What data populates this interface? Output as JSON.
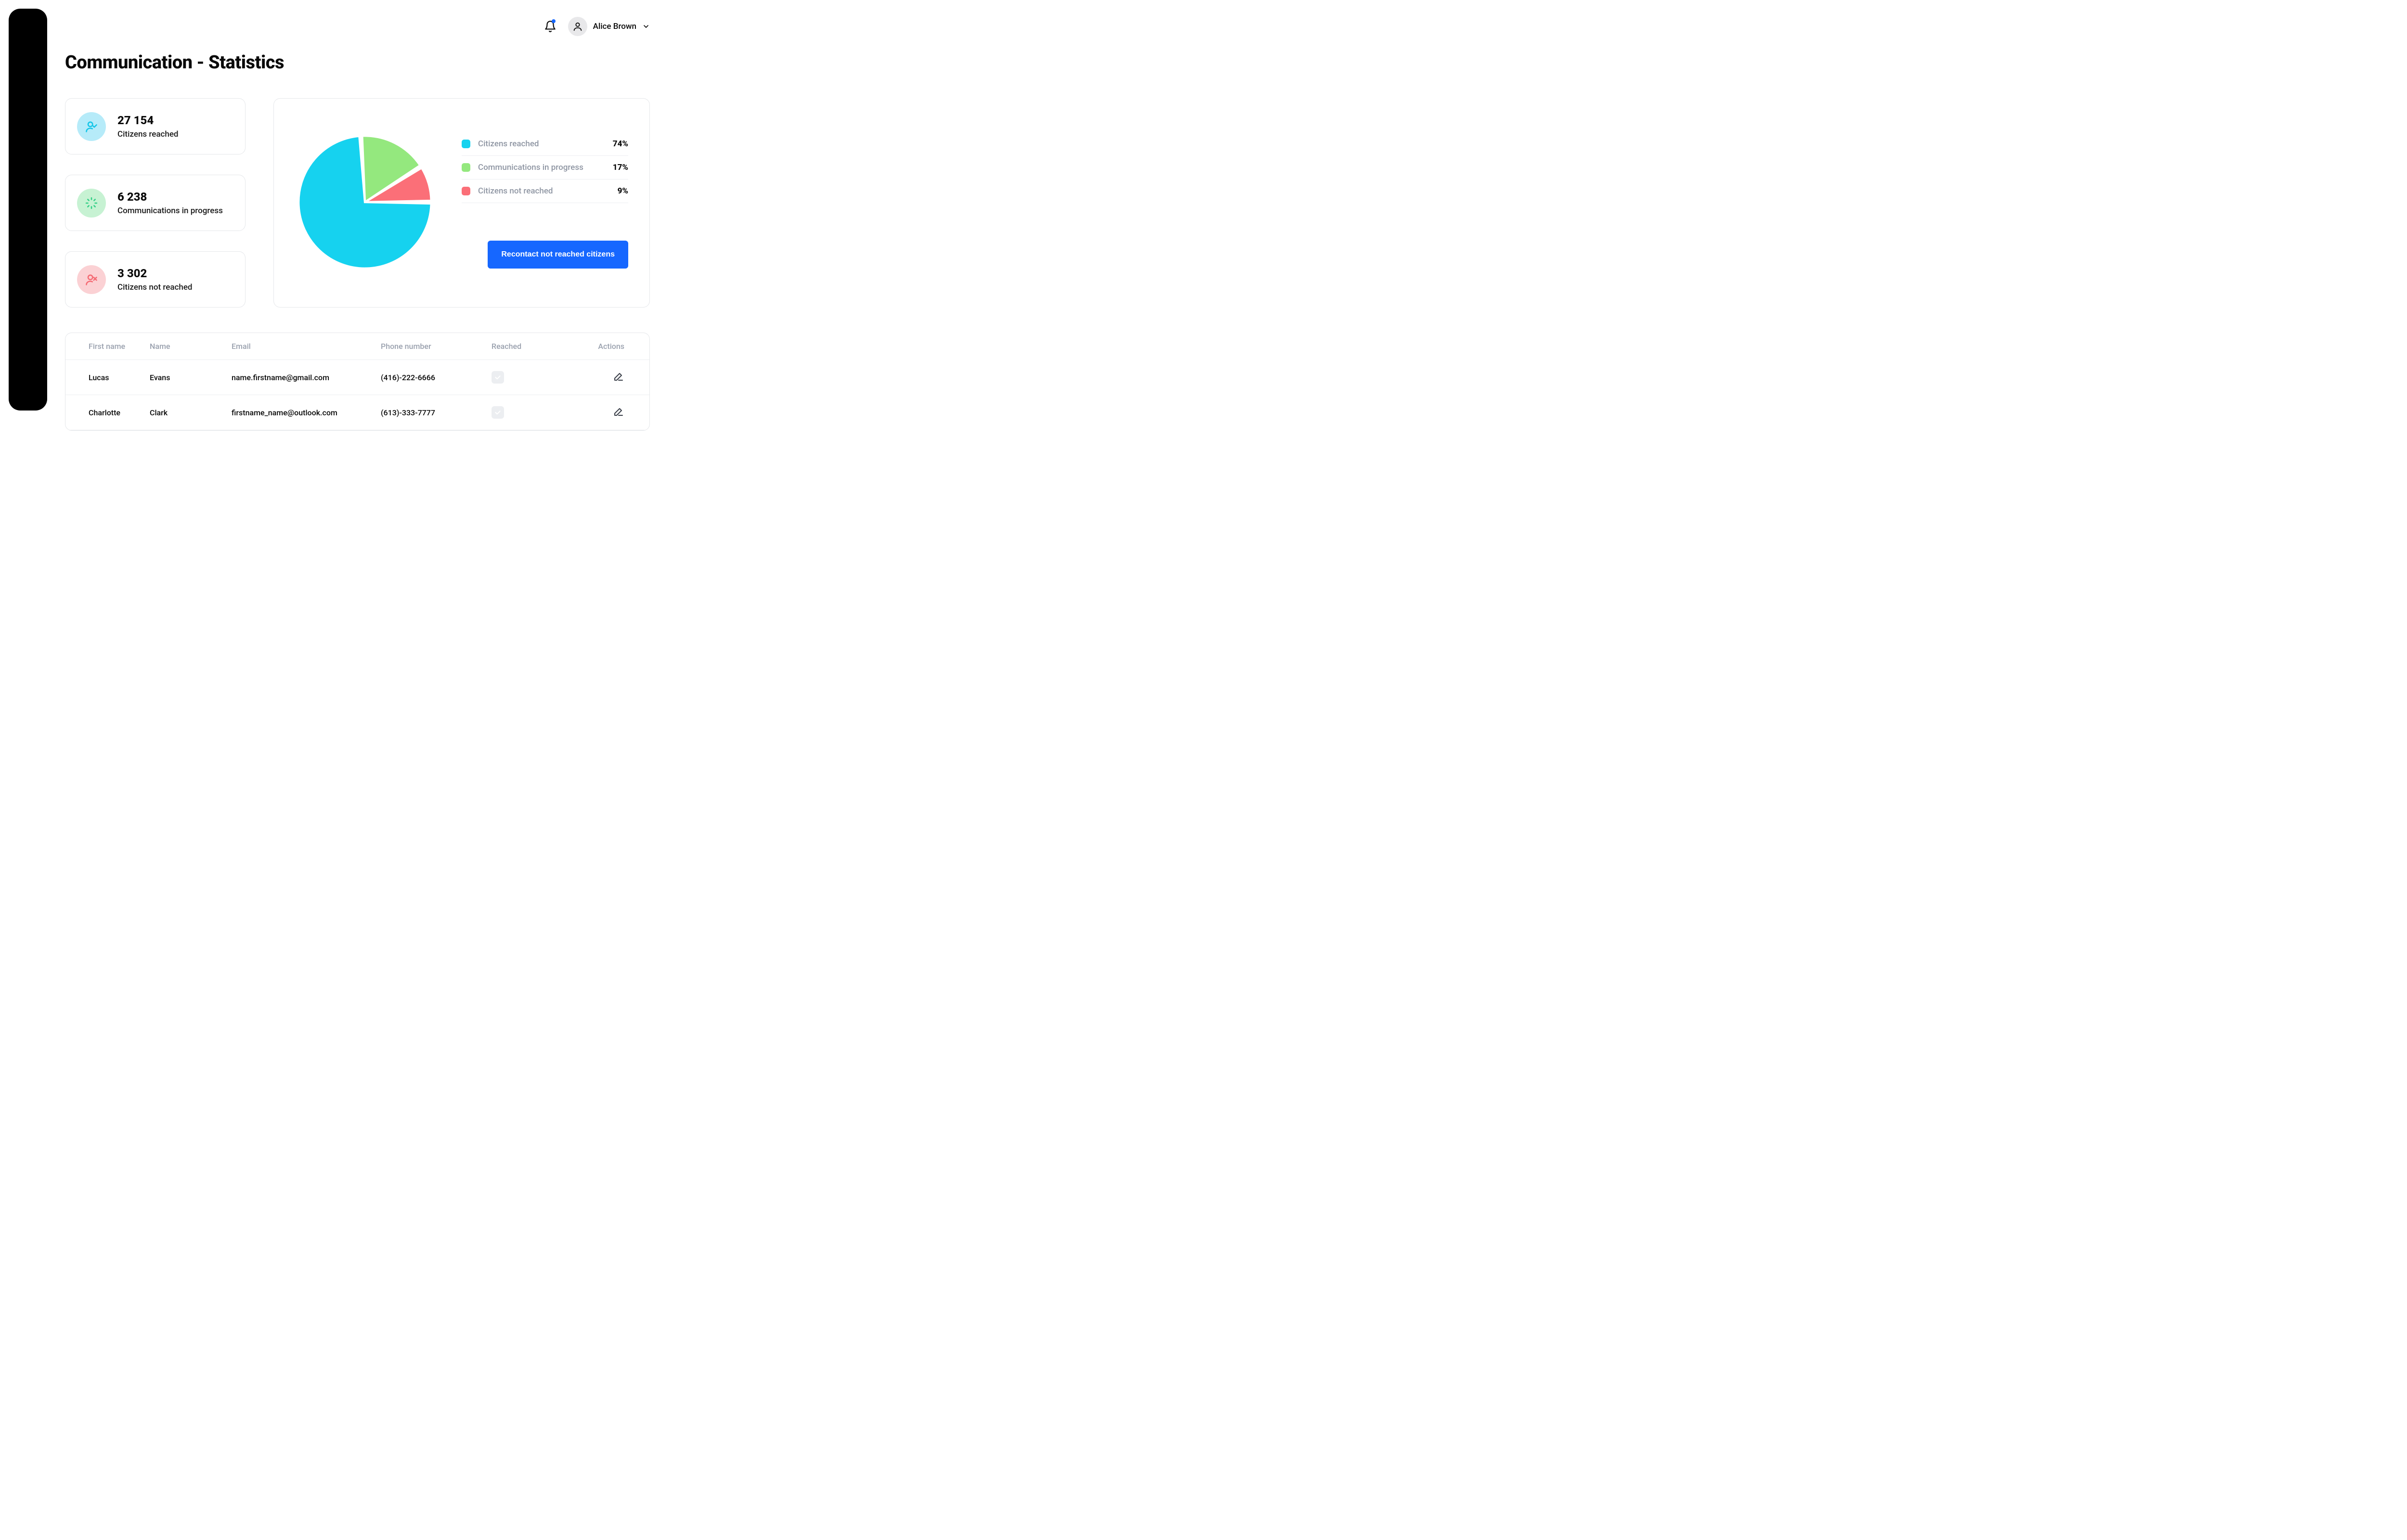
{
  "header": {
    "user_name": "Alice Brown"
  },
  "page": {
    "title": "Communication - Statistics"
  },
  "stats": {
    "cards": [
      {
        "value": "27 154",
        "label": "Citizens reached",
        "icon_bg": "#b6ebf9",
        "icon_fg": "#15c6e8",
        "icon": "user-check"
      },
      {
        "value": "6 238",
        "label": "Communications in progress",
        "icon_bg": "#c7f2d3",
        "icon_fg": "#34cf87",
        "icon": "spinner"
      },
      {
        "value": "3 302",
        "label": "Citizens not reached",
        "icon_bg": "#fbd1d4",
        "icon_fg": "#f56b74",
        "icon": "user-x"
      }
    ]
  },
  "pie_chart": {
    "type": "pie",
    "background_color": "#ffffff",
    "gap_color": "#ffffff",
    "gap_deg": 2.5,
    "start_angle_deg": 0,
    "slices": [
      {
        "label": "Citizens reached",
        "pct": 74,
        "pct_text": "74%",
        "color": "#16d2ef"
      },
      {
        "label": "Communications in progress",
        "pct": 17,
        "pct_text": "17%",
        "color": "#94e87e"
      },
      {
        "label": "Citizens not reached",
        "pct": 9,
        "pct_text": "9%",
        "color": "#fb6f78"
      }
    ],
    "action_button": "Recontact not reached citizens",
    "button_bg": "#1667ff",
    "button_fg": "#ffffff"
  },
  "table": {
    "columns": [
      "First name",
      "Name",
      "Email",
      "Phone number",
      "Reached",
      "Actions"
    ],
    "rows": [
      {
        "first_name": "Lucas",
        "name": "Evans",
        "email": "name.firstname@gmail.com",
        "phone": "(416)-222-6666",
        "reached": true
      },
      {
        "first_name": "Charlotte",
        "name": "Clark",
        "email": "firstname_name@outlook.com",
        "phone": "(613)-333-7777",
        "reached": true
      }
    ],
    "reached_box_bg": "#eceef1",
    "reached_check_color": "#ffffff",
    "edit_icon_color": "#3a3f49"
  },
  "colors": {
    "border": "#e5e7ea",
    "text_muted": "#9aa1ae",
    "legend_label": "#8f96a3"
  }
}
